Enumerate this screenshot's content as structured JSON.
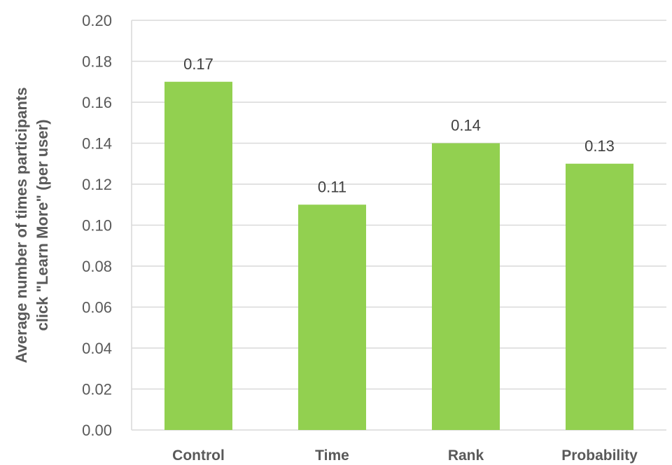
{
  "chart_data": {
    "type": "bar",
    "categories": [
      "Control",
      "Time",
      "Rank",
      "Probability"
    ],
    "values": [
      0.17,
      0.11,
      0.14,
      0.13
    ],
    "data_labels": [
      "0.17",
      "0.11",
      "0.14",
      "0.13"
    ],
    "title": "",
    "xlabel": "",
    "ylabel_lines": [
      "Average number of times participants",
      "click \"Learn More\" (per user)"
    ],
    "ylim": [
      0,
      0.2
    ],
    "yticks": [
      0,
      0.02,
      0.04,
      0.06,
      0.08,
      0.1,
      0.12,
      0.14,
      0.16,
      0.18,
      0.2
    ],
    "ytick_labels": [
      "0.00",
      "0.02",
      "0.04",
      "0.06",
      "0.08",
      "0.10",
      "0.12",
      "0.14",
      "0.16",
      "0.18",
      "0.20"
    ],
    "grid": true,
    "legend": "none",
    "colors": {
      "bar": "#92d050",
      "grid": "#d9d9d9",
      "text": "#595959",
      "data_label": "#404040"
    }
  }
}
